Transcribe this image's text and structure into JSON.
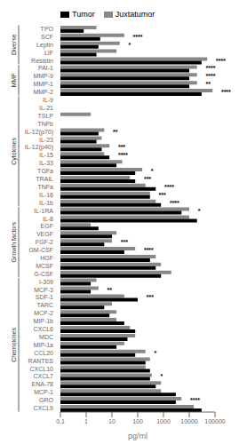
{
  "chart_data": {
    "type": "bar",
    "orientation": "horizontal",
    "log": "x",
    "grid": false,
    "legend": "upper left",
    "xlabel": "pg/ml",
    "xlim": [
      0.1,
      100000
    ],
    "xticks": [
      0.1,
      1,
      10,
      100,
      1000,
      10000,
      100000
    ],
    "categories": [
      "TPO",
      "SCF",
      "Leptin",
      "LIF",
      "Resistin",
      "PAI-1",
      "MMP-9",
      "MMP-1",
      "MMP-2",
      "IL-9",
      "IL-21",
      "TSLP",
      "TNFb",
      "IL-12(p70)",
      "IL-23",
      "IL-12(p40)",
      "IL-15",
      "IL-33",
      "TGFa",
      "TRAIL",
      "TNFa",
      "IL-16",
      "IL-1b",
      "IL-1RA",
      "IL-8",
      "EGF",
      "VEGF",
      "FGF-2",
      "GM-CSF",
      "HGF",
      "MCSF",
      "G-CSF",
      "I-309",
      "MCP-3",
      "SDF-1",
      "TARC",
      "MCP-2",
      "MIP-1b",
      "CXCL6",
      "MDC",
      "MIP-1a",
      "CCL20",
      "RANTES",
      "CXCL10",
      "CXCL7",
      "ENA-78",
      "MCP-1",
      "GRO",
      "CXCL9"
    ],
    "series": [
      {
        "name": "Tumor",
        "color": "#000000",
        "values": [
          0.8,
          3.5,
          3.0,
          2.5,
          30000,
          10000,
          10000,
          10000,
          30000,
          0.1,
          0.1,
          0.1,
          0.1,
          3,
          2.5,
          4,
          8,
          15,
          80,
          80,
          500,
          300,
          800,
          5000,
          20000,
          3,
          10,
          5,
          30,
          300,
          500,
          800,
          1.5,
          1.5,
          100,
          5,
          8,
          30,
          80,
          40,
          15,
          80,
          200,
          300,
          300,
          500,
          3000,
          3000,
          30000
        ]
      },
      {
        "name": "Juxtatumor",
        "color": "#888888",
        "values": [
          2.5,
          30,
          20,
          15,
          50000,
          20000,
          20000,
          20000,
          80000,
          0.1,
          0.1,
          1.5,
          0.1,
          5,
          4,
          8,
          5,
          25,
          150,
          50,
          200,
          300,
          500,
          10000,
          10000,
          1.5,
          15,
          10,
          80,
          500,
          800,
          2000,
          2.5,
          3,
          30,
          10,
          15,
          15,
          50,
          80,
          30,
          200,
          300,
          200,
          350,
          800,
          800,
          5000,
          15000
        ]
      }
    ],
    "annotations": [
      {
        "category": "SCF",
        "text": "****"
      },
      {
        "category": "Leptin",
        "text": "*"
      },
      {
        "category": "Resistin",
        "text": "****"
      },
      {
        "category": "PAI-1",
        "text": "****"
      },
      {
        "category": "MMP-9",
        "text": "****"
      },
      {
        "category": "MMP-1",
        "text": "**"
      },
      {
        "category": "MMP-2",
        "text": "****"
      },
      {
        "category": "IL-12(p70)",
        "text": "**"
      },
      {
        "category": "IL-12(p40)",
        "text": "***"
      },
      {
        "category": "IL-15",
        "text": "****"
      },
      {
        "category": "TGFa",
        "text": "*"
      },
      {
        "category": "TRAIL",
        "text": "***"
      },
      {
        "category": "TNFa",
        "text": "****"
      },
      {
        "category": "IL-16",
        "text": "***"
      },
      {
        "category": "IL-1b",
        "text": "****"
      },
      {
        "category": "IL-1RA",
        "text": "*"
      },
      {
        "category": "FGF-2",
        "text": "***"
      },
      {
        "category": "GM-CSF",
        "text": "****"
      },
      {
        "category": "MCP-3",
        "text": "**"
      },
      {
        "category": "SDF-1",
        "text": "***"
      },
      {
        "category": "CCL20",
        "text": "*"
      },
      {
        "category": "CXCL7",
        "text": "*"
      },
      {
        "category": "GRO",
        "text": "****"
      }
    ],
    "groups": [
      {
        "label": "Diverse",
        "first": "TPO",
        "last": "Resistin"
      },
      {
        "label": "MMP",
        "first": "PAI-1",
        "last": "MMP-2"
      },
      {
        "label": "Cytokines",
        "first": "IL-9",
        "last": "IL-1b"
      },
      {
        "label": "Growth factors",
        "first": "IL-1RA",
        "last": "G-CSF"
      },
      {
        "label": "Chemokines",
        "first": "I-309",
        "last": "CXCL9"
      }
    ]
  }
}
